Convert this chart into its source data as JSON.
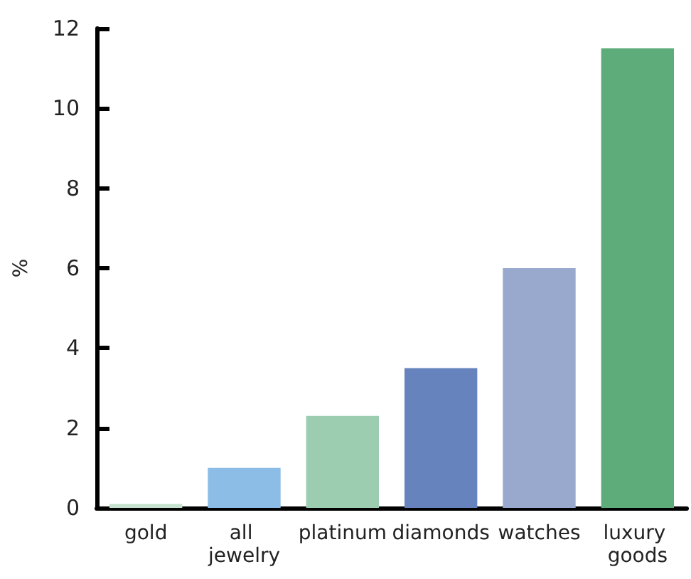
{
  "chart_data": {
    "type": "bar",
    "ylabel": "%",
    "categories": [
      "gold",
      "all jewelry",
      "platinum",
      "diamonds",
      "watches",
      "luxury goods"
    ],
    "values": [
      0.1,
      1.0,
      2.3,
      3.5,
      6.0,
      11.5
    ],
    "colors": [
      "#c4e2cd",
      "#8bbde6",
      "#9dcdb0",
      "#6783bd",
      "#98a9cd",
      "#5dac79"
    ],
    "ylim": [
      0,
      12
    ],
    "yticks": [
      0,
      2,
      4,
      6,
      8,
      10,
      12
    ],
    "grid": false
  }
}
